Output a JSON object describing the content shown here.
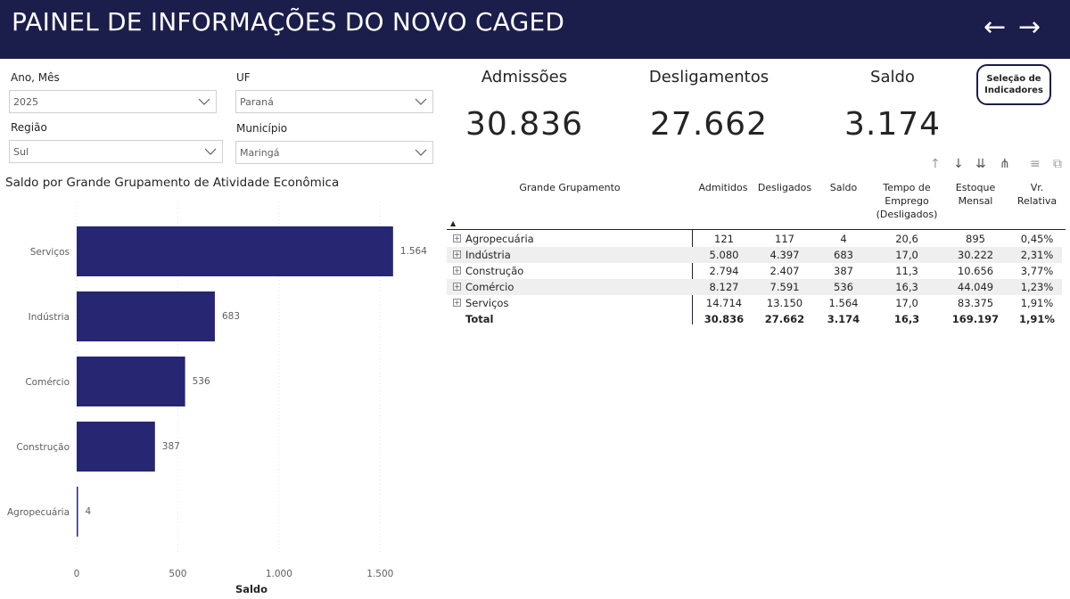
{
  "header": {
    "title": "PAINEL DE INFORMAÇÕES DO NOVO CAGED",
    "back_arrow": "←",
    "forward_arrow": "→"
  },
  "filters": {
    "ano_mes": {
      "label": "Ano, Mês",
      "value": "2025"
    },
    "uf": {
      "label": "UF",
      "value": "Paraná"
    },
    "regiao": {
      "label": "Região",
      "value": "Sul"
    },
    "municipio": {
      "label": "Município",
      "value": "Maringá"
    }
  },
  "kpis": {
    "admissoes": {
      "label": "Admissões",
      "value": "30.836"
    },
    "desligamentos": {
      "label": "Desligamentos",
      "value": "27.662"
    },
    "saldo": {
      "label": "Saldo",
      "value": "3.174"
    }
  },
  "selection_button": {
    "line1": "Seleção de",
    "line2": "Indicadores"
  },
  "chart_title": "Saldo por Grande Grupamento de Atividade Econômica",
  "chart_data": {
    "type": "bar",
    "orientation": "horizontal",
    "categories": [
      "Serviços",
      "Indústria",
      "Comércio",
      "Construção",
      "Agropecuária"
    ],
    "values": [
      1564,
      683,
      536,
      387,
      4
    ],
    "value_labels": [
      "1.564",
      "683",
      "536",
      "387",
      "4"
    ],
    "xlabel": "Saldo",
    "xlim": [
      0,
      1600
    ],
    "xticks": [
      0,
      500,
      1000,
      1500
    ],
    "xtick_labels": [
      "0",
      "500",
      "1.000",
      "1.500"
    ],
    "bar_color": "#262673",
    "grid": true
  },
  "table": {
    "headers": [
      "Grande Grupamento",
      "Admitidos",
      "Desligados",
      "Saldo",
      "Tempo de Emprego (Desligados)",
      "Estoque Mensal",
      "Vr. Relativa"
    ],
    "header_lines": {
      "tempo": [
        "Tempo de",
        "Emprego",
        "(Desligados)"
      ],
      "estoque": [
        "Estoque",
        "Mensal"
      ],
      "vr": [
        "Vr.",
        "Relativa"
      ]
    },
    "rows": [
      {
        "grupo": "Agropecuária",
        "admitidos": "121",
        "desligados": "117",
        "saldo": "4",
        "tempo": "20,6",
        "estoque": "895",
        "vr": "0,45%"
      },
      {
        "grupo": "Indústria",
        "admitidos": "5.080",
        "desligados": "4.397",
        "saldo": "683",
        "tempo": "17,0",
        "estoque": "30.222",
        "vr": "2,31%"
      },
      {
        "grupo": "Construção",
        "admitidos": "2.794",
        "desligados": "2.407",
        "saldo": "387",
        "tempo": "11,3",
        "estoque": "10.656",
        "vr": "3,77%"
      },
      {
        "grupo": "Comércio",
        "admitidos": "8.127",
        "desligados": "7.591",
        "saldo": "536",
        "tempo": "16,3",
        "estoque": "44.049",
        "vr": "1,23%"
      },
      {
        "grupo": "Serviços",
        "admitidos": "14.714",
        "desligados": "13.150",
        "saldo": "1.564",
        "tempo": "17,0",
        "estoque": "83.375",
        "vr": "1,91%"
      }
    ],
    "total": {
      "grupo": "Total",
      "admitidos": "30.836",
      "desligados": "27.662",
      "saldo": "3.174",
      "tempo": "16,3",
      "estoque": "169.197",
      "vr": "1,91%"
    }
  },
  "toolbar_icons": [
    "arrow-up-icon",
    "arrow-down-icon",
    "double-arrow-down-icon",
    "expand-hierarchy-icon",
    "filter-icon",
    "focus-mode-icon"
  ],
  "colors": {
    "header_bg": "#1b1d4a",
    "bar": "#262673",
    "accent_border": "#1b1d4a"
  }
}
